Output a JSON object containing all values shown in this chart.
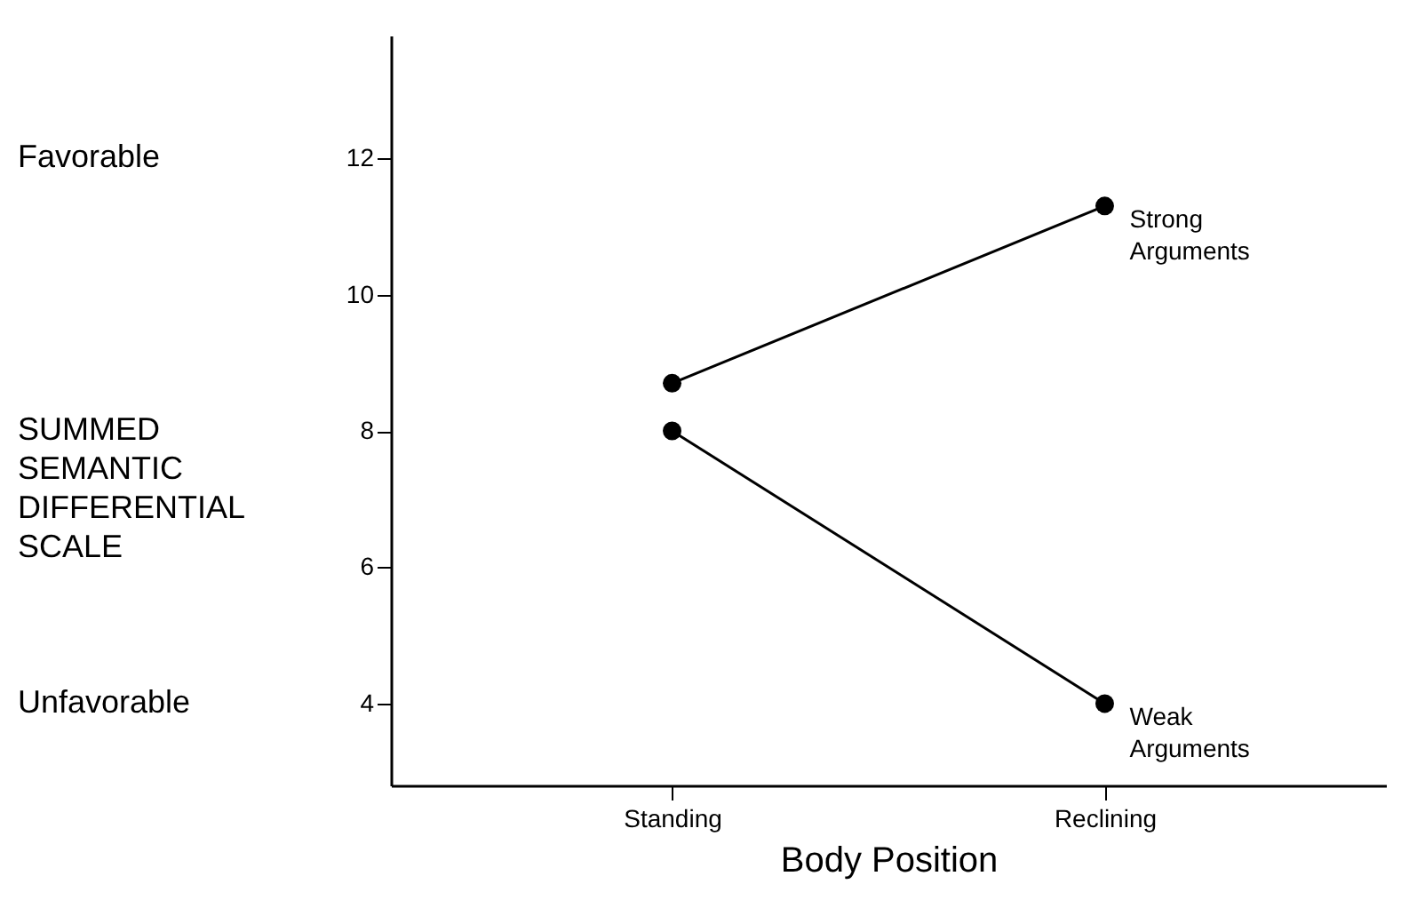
{
  "chart_data": {
    "type": "line",
    "categories": [
      "Standing",
      "Reclining"
    ],
    "series": [
      {
        "name": "Strong Arguments",
        "color": "#000000",
        "values": [
          8.7,
          11.3
        ]
      },
      {
        "name": "Weak Arguments",
        "color": "#000000",
        "values": [
          8.0,
          4.0
        ]
      }
    ],
    "xlabel": "Body Position",
    "ylabel": "SUMMED SEMANTIC DIFFERENTIAL SCALE",
    "annotations": [
      "Favorable",
      "Unfavorable"
    ],
    "ylim": [
      2.8,
      13.8
    ],
    "yticks": [
      4,
      6,
      8,
      10,
      12
    ],
    "marker": "circle",
    "line_style": "solid",
    "grid": false,
    "legend": false
  }
}
